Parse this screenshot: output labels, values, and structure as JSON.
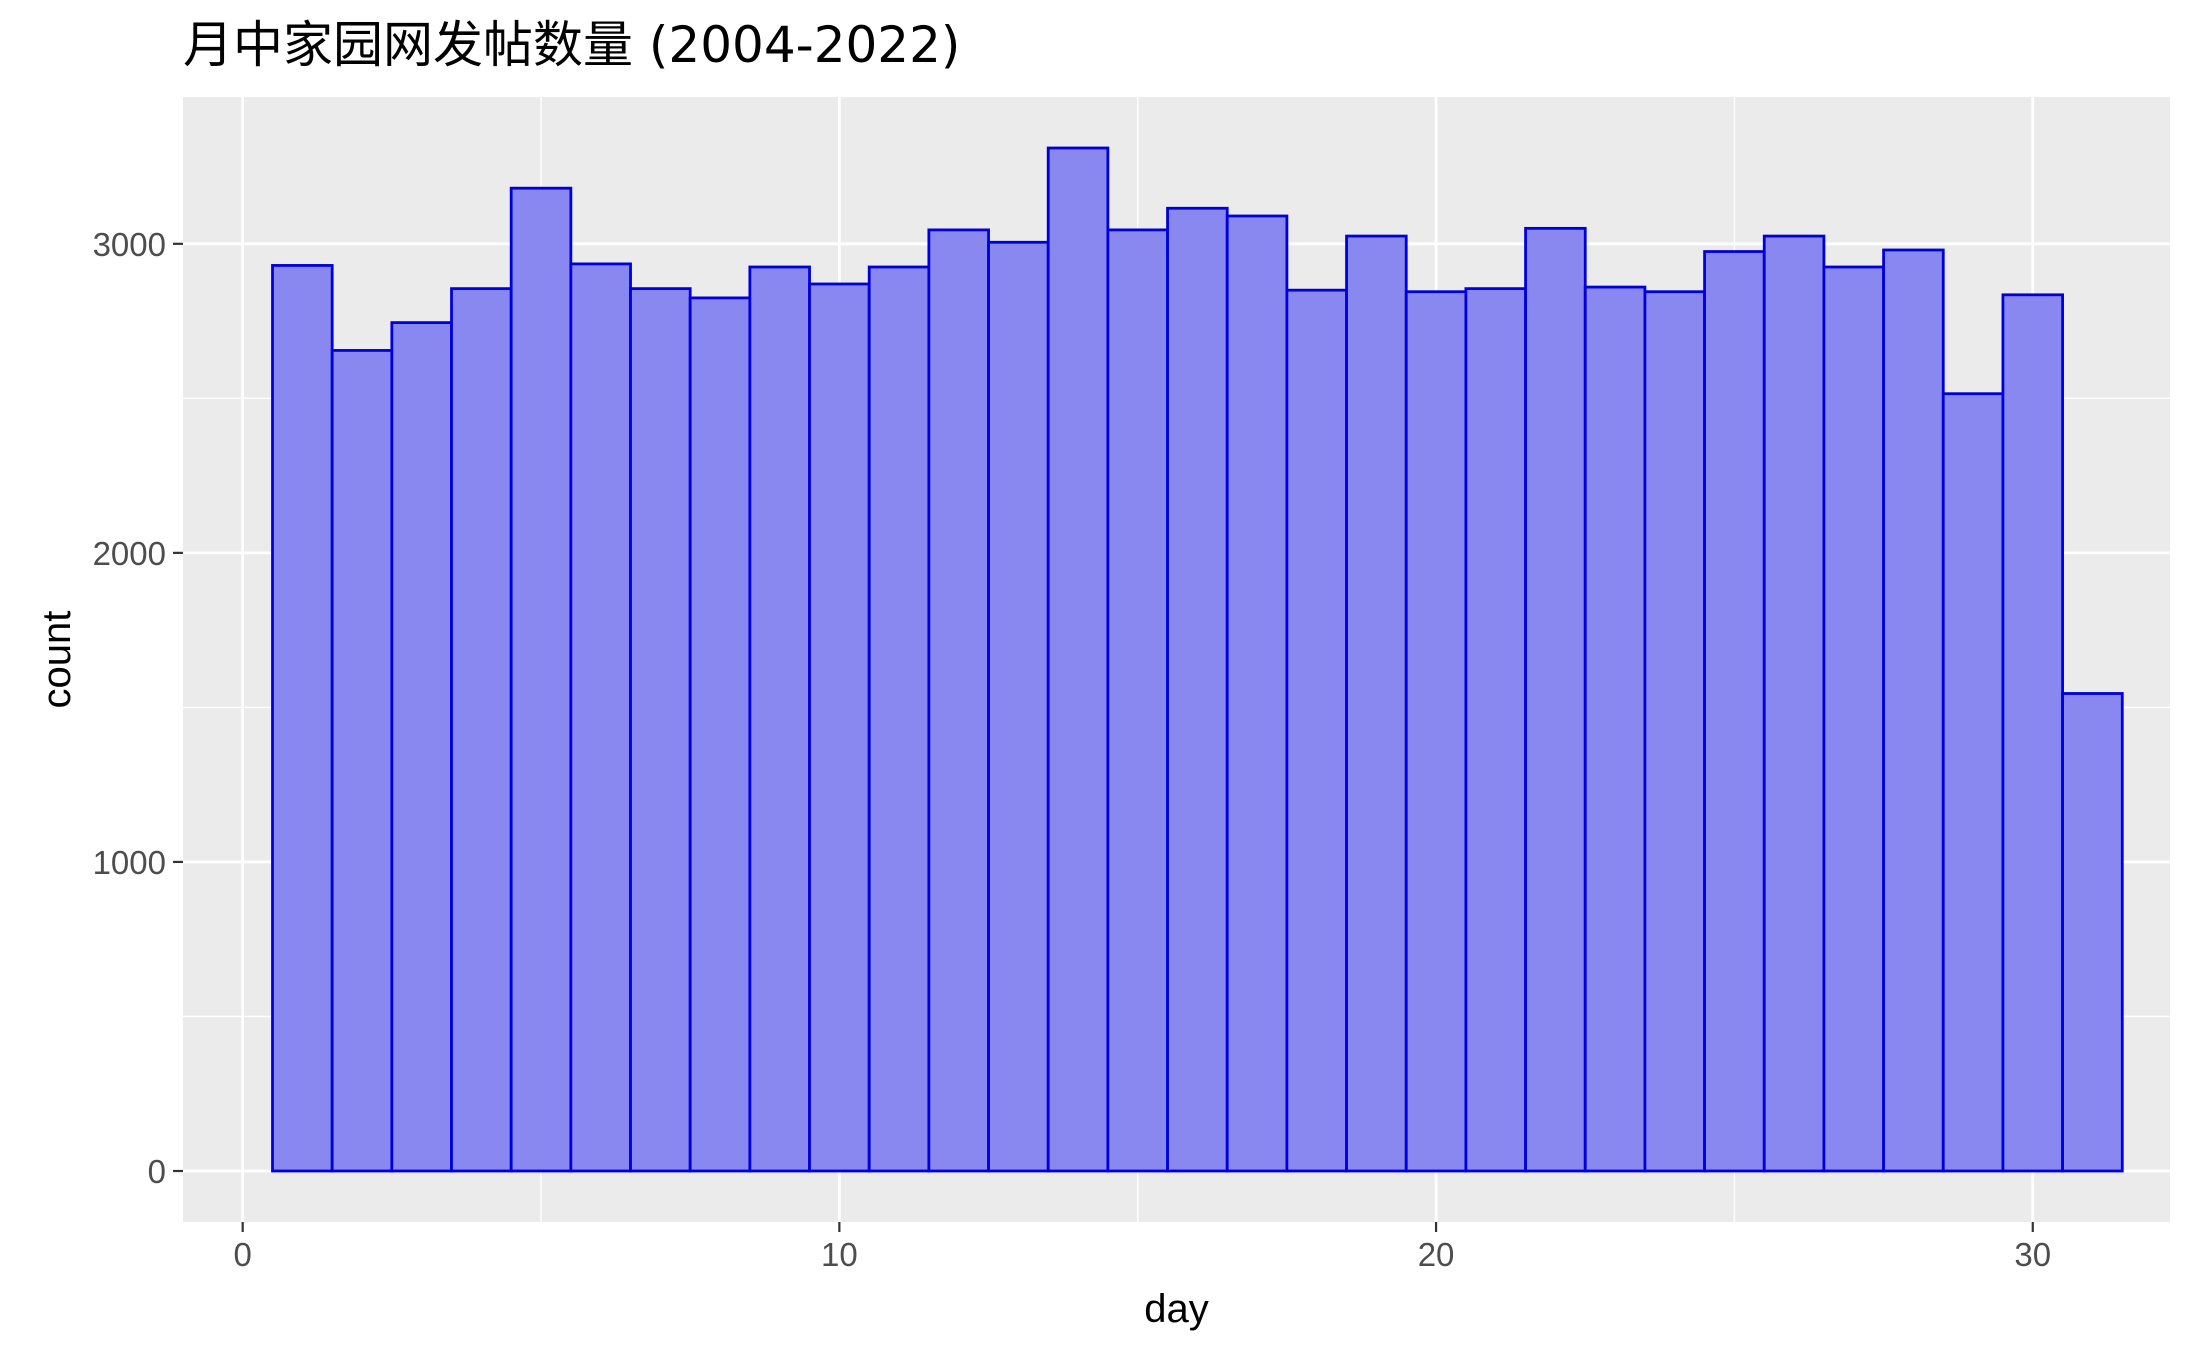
{
  "chart_data": {
    "type": "bar",
    "title": "月中家园网发帖数量 (2004-2022)",
    "xlabel": "day",
    "ylabel": "count",
    "x": [
      1,
      2,
      3,
      4,
      5,
      6,
      7,
      8,
      9,
      10,
      11,
      12,
      13,
      14,
      15,
      16,
      17,
      18,
      19,
      20,
      21,
      22,
      23,
      24,
      25,
      26,
      27,
      28,
      29,
      30,
      31
    ],
    "values": [
      2930,
      2655,
      2745,
      2855,
      3180,
      2935,
      2855,
      2825,
      2925,
      2870,
      2925,
      3045,
      3005,
      3310,
      3045,
      3115,
      3090,
      2850,
      3025,
      2845,
      2855,
      3050,
      2860,
      2845,
      2975,
      3025,
      2925,
      2980,
      2515,
      2835,
      1545
    ],
    "xlim": [
      -1,
      32.3
    ],
    "ylim": [
      -165,
      3475
    ],
    "x_ticks": [
      0,
      10,
      20,
      30
    ],
    "x_tick_labels": [
      "0",
      "10",
      "20",
      "30"
    ],
    "y_ticks": [
      0,
      1000,
      2000,
      3000
    ],
    "y_tick_labels": [
      "0",
      "1000",
      "2000",
      "3000"
    ],
    "grid": true,
    "legend": "none",
    "colors": {
      "panel_background": "#ebebeb",
      "grid": "#ffffff",
      "bar_fill": "#8888f0",
      "bar_outline": "#0000dd",
      "tick_label": "#4d4d4d",
      "tick_mark": "#333333"
    }
  }
}
